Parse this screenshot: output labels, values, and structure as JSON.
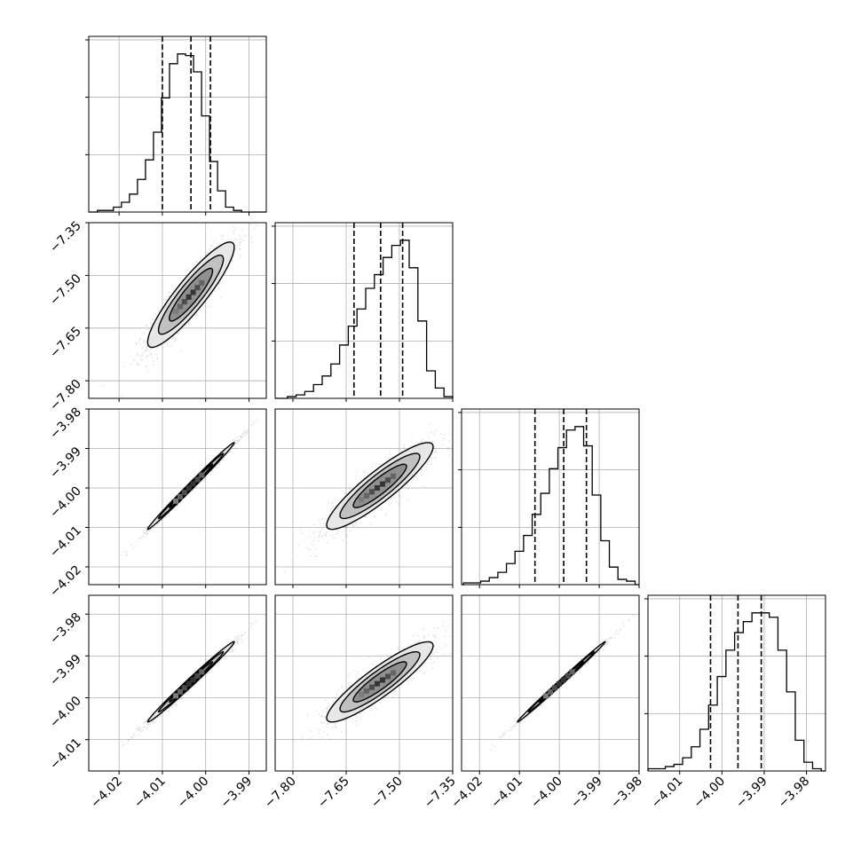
{
  "chart_data": {
    "type": "corner",
    "grid": true,
    "colors": {
      "axes": "#000000",
      "grid": "#b0b0b0",
      "points": "#4a4a4a",
      "hist": "#000000",
      "quantile": "#000000"
    },
    "params": [
      {
        "range": [
          -4.027,
          -3.986
        ],
        "ticks": [
          -4.02,
          -4.01,
          -4.0,
          -3.99
        ],
        "tick_labels": [
          "−4.02",
          "−4.01",
          "−4.00",
          "−3.99"
        ]
      },
      {
        "range": [
          -7.85,
          -7.35
        ],
        "ticks": [
          -7.8,
          -7.65,
          -7.5,
          -7.35
        ],
        "tick_labels": [
          "−7.80",
          "−7.65",
          "−7.50",
          "−7.35"
        ]
      },
      {
        "range": [
          -4.0245,
          -3.98
        ],
        "ticks": [
          -4.02,
          -4.01,
          -4.0,
          -3.99,
          -3.98
        ],
        "tick_labels": [
          "−4.02",
          "−4.01",
          "−4.00",
          "−3.99",
          "−3.98"
        ]
      },
      {
        "range": [
          -4.0175,
          -3.9755
        ],
        "ticks": [
          -4.01,
          -4.0,
          -3.99,
          -3.98
        ],
        "tick_labels": [
          "−4.01",
          "−4.00",
          "−3.99",
          "−3.98"
        ]
      }
    ],
    "y_ticks": [
      null,
      {
        "ticks": [
          -7.8,
          -7.65,
          -7.5,
          -7.35
        ],
        "tick_labels": [
          "−7.80",
          "−7.65",
          "−7.50",
          "−7.35"
        ]
      },
      {
        "ticks": [
          -4.02,
          -4.01,
          -4.0,
          -3.99,
          -3.98
        ],
        "tick_labels": [
          "−4.02",
          "−4.01",
          "−4.00",
          "−3.99",
          "−3.98"
        ]
      },
      {
        "ticks": [
          -4.01,
          -4.0,
          -3.99,
          -3.98
        ],
        "tick_labels": [
          "−4.01",
          "−4.00",
          "−3.99",
          "−3.98"
        ]
      }
    ],
    "histograms": [
      {
        "param": 0,
        "edges_range": [
          -4.025,
          -3.988
        ],
        "counts": [
          1,
          1,
          3,
          6,
          11,
          20,
          32,
          49,
          70,
          91,
          97,
          96,
          86,
          59,
          31,
          13,
          3,
          1,
          0,
          0
        ],
        "quantiles": [
          -4.01,
          -4.0034,
          -3.9989
        ],
        "hist_max_frac": 0.9
      },
      {
        "param": 1,
        "edges_range": [
          -7.84,
          -7.35
        ],
        "counts": [
          0,
          1,
          2,
          4,
          8,
          13,
          20,
          31,
          42,
          52,
          64,
          72,
          82,
          89,
          92,
          76,
          45,
          16,
          6,
          1
        ],
        "quantiles": [
          -7.628,
          -7.553,
          -7.491
        ],
        "hist_max_frac": 0.9
      },
      {
        "param": 2,
        "edges_range": [
          -4.024,
          -3.981
        ],
        "counts": [
          1,
          1,
          2,
          4,
          7,
          12,
          19,
          28,
          40,
          52,
          66,
          78,
          88,
          90,
          79,
          51,
          25,
          10,
          3,
          2
        ],
        "quantiles": [
          -4.0061,
          -3.9989,
          -3.9932
        ],
        "hist_max_frac": 0.9
      },
      {
        "param": 3,
        "edges_range": [
          -4.0175,
          -3.9765
        ],
        "counts": [
          1,
          1,
          2,
          3,
          6,
          11,
          19,
          30,
          43,
          55,
          63,
          68,
          72,
          72,
          70,
          55,
          36,
          14,
          4,
          1
        ],
        "quantiles": [
          -4.0027,
          -3.9962,
          -3.9907
        ],
        "hist_max_frac": 0.9
      }
    ],
    "pairs": [
      {
        "row": 1,
        "col": 0,
        "mean": [
          -4.0034,
          -7.555
        ],
        "sd": [
          0.005,
          0.075
        ],
        "corr": 0.9
      },
      {
        "row": 2,
        "col": 0,
        "mean": [
          -4.0034,
          -3.9995
        ],
        "sd": [
          0.005,
          0.0055
        ],
        "corr": 0.995
      },
      {
        "row": 2,
        "col": 1,
        "mean": [
          -7.555,
          -3.9995
        ],
        "sd": [
          0.075,
          0.0055
        ],
        "corr": 0.9
      },
      {
        "row": 3,
        "col": 0,
        "mean": [
          -4.0034,
          -3.9962
        ],
        "sd": [
          0.005,
          0.0048
        ],
        "corr": 0.992
      },
      {
        "row": 3,
        "col": 1,
        "mean": [
          -7.555,
          -3.9962
        ],
        "sd": [
          0.075,
          0.0048
        ],
        "corr": 0.9
      },
      {
        "row": 3,
        "col": 2,
        "mean": [
          -3.9995,
          -3.9962
        ],
        "sd": [
          0.0055,
          0.0048
        ],
        "corr": 0.997
      }
    ]
  }
}
